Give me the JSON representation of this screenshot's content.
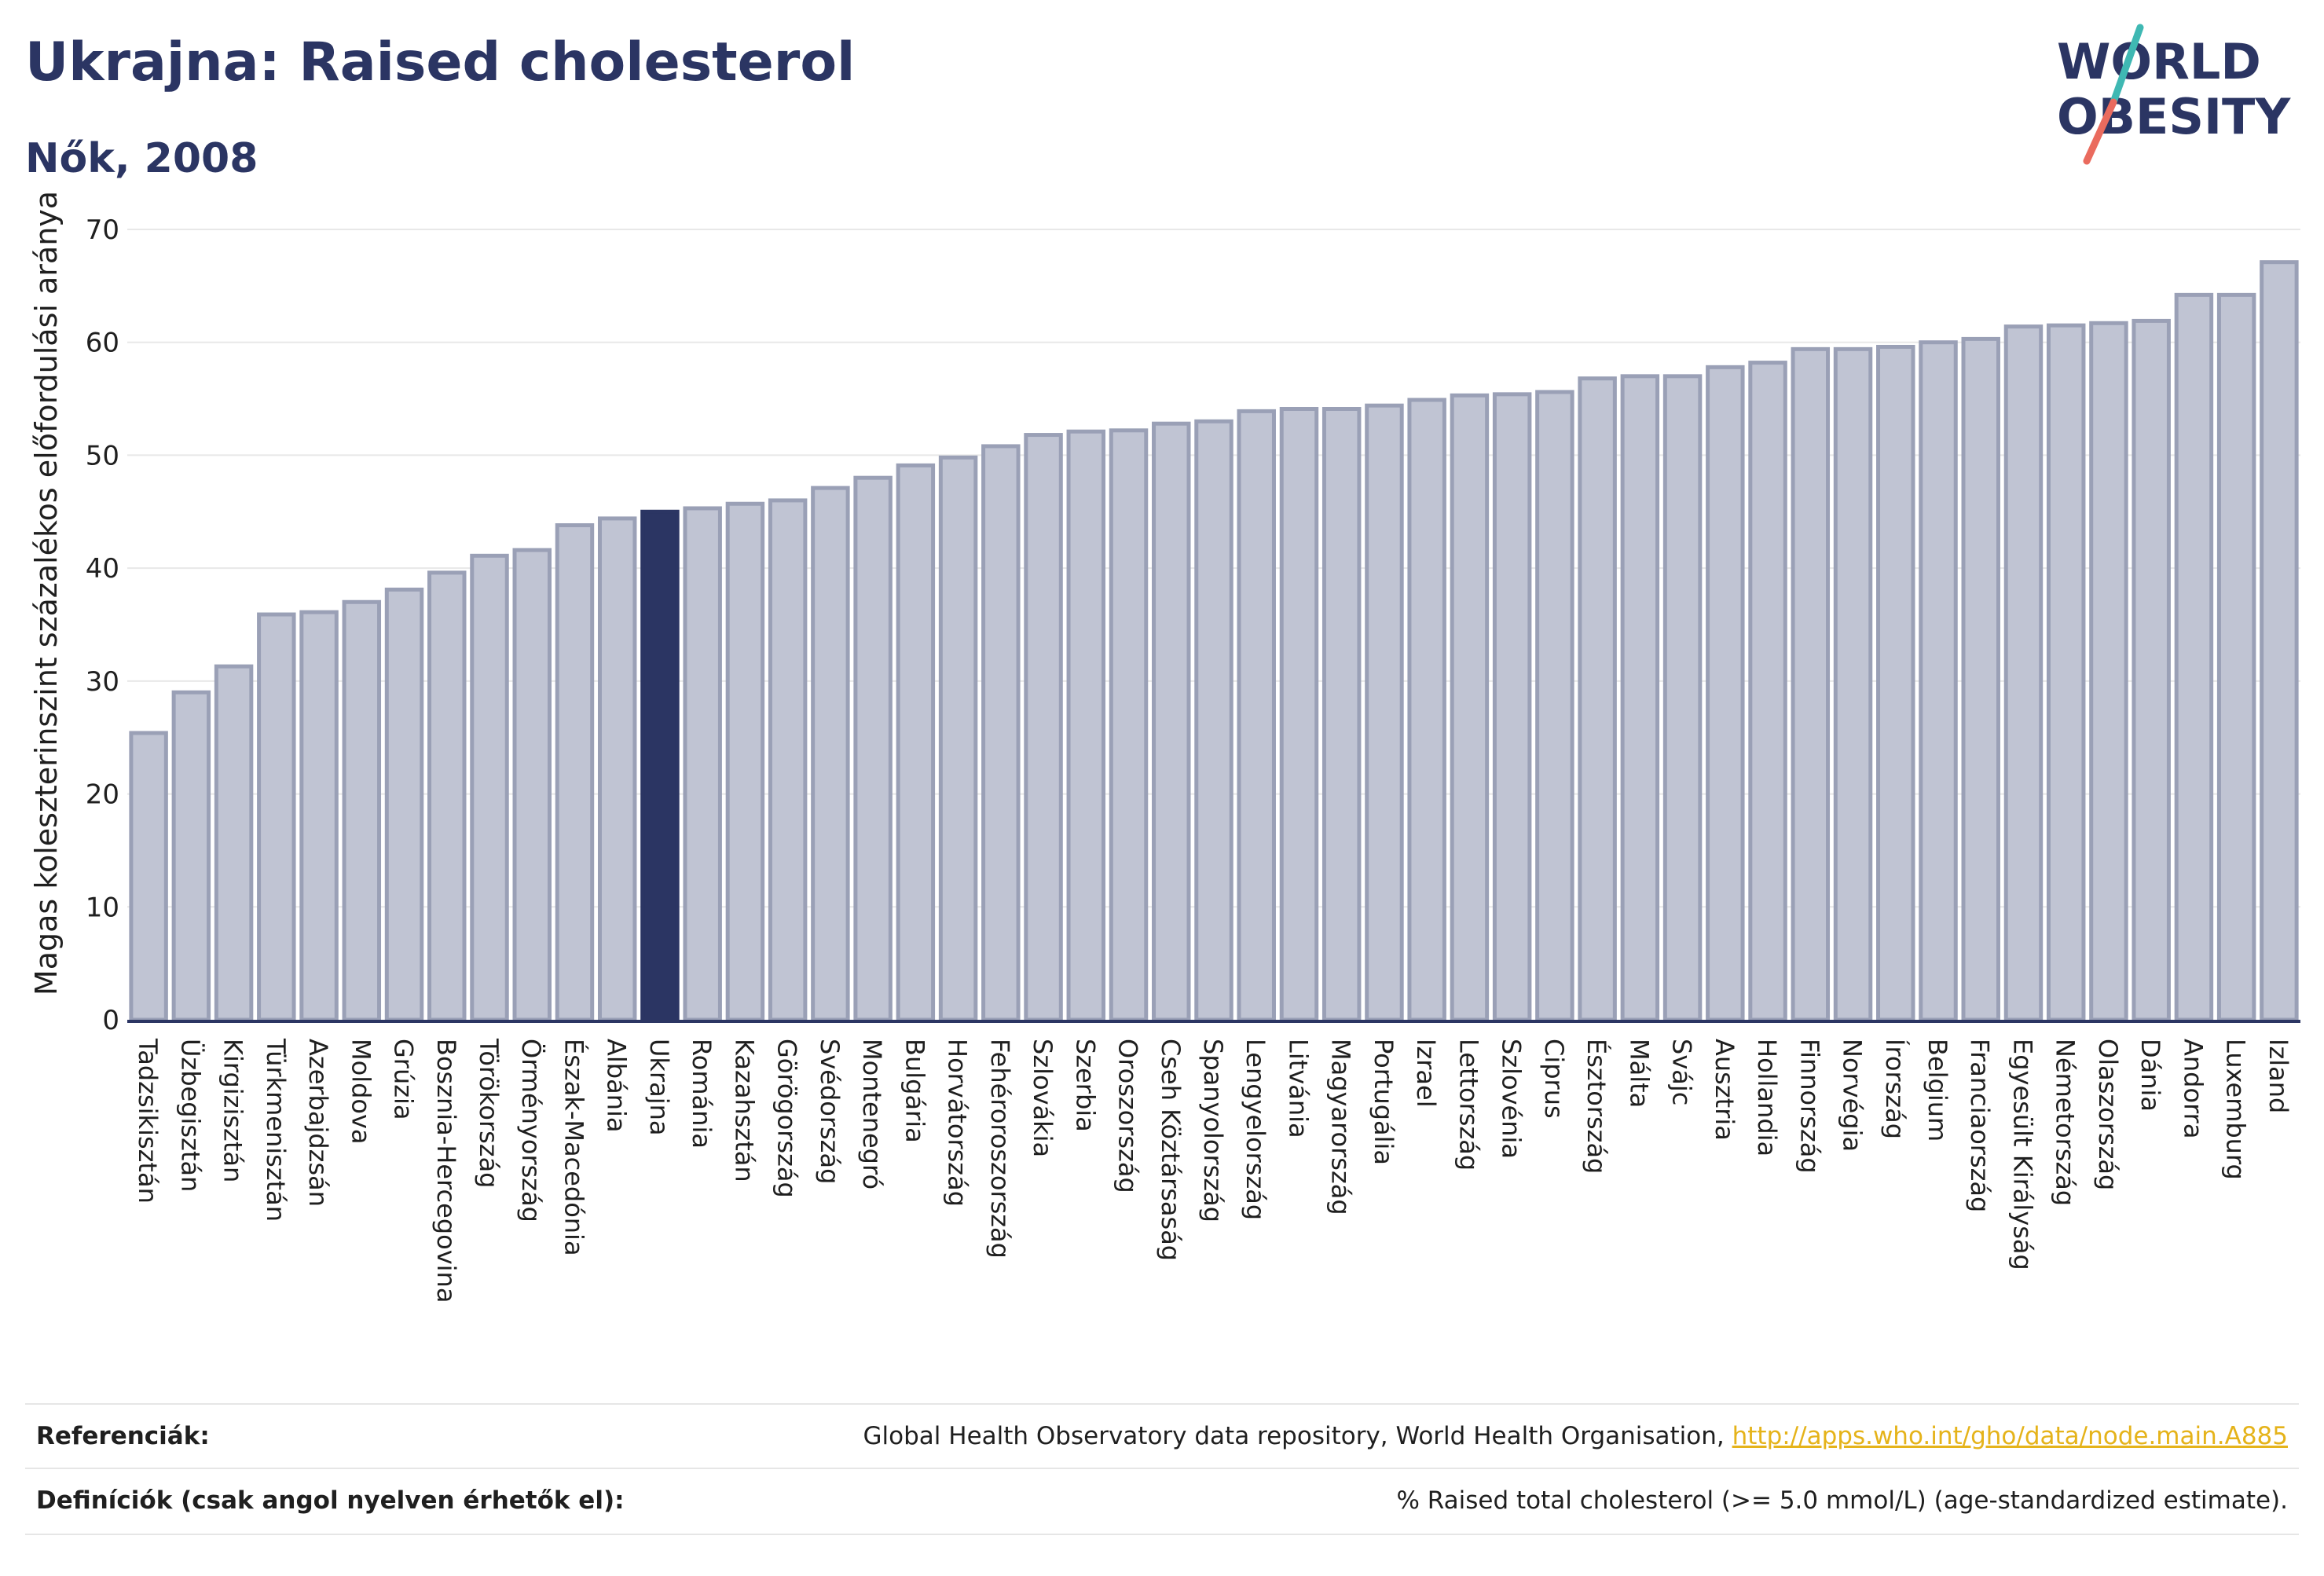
{
  "header": {
    "title": "Ukrajna: Raised cholesterol",
    "subtitle": "Nők, 2008"
  },
  "logo": {
    "line1": "WORLD",
    "line2": "OBESITY",
    "colors": {
      "text": "#2b3563",
      "slash_teal": "#3fb8b3",
      "slash_coral": "#ea6b5e"
    }
  },
  "chart_data": {
    "type": "bar",
    "ylabel": "Magas koleszterinszint százalékos előfordulási aránya",
    "xlabel": "",
    "ylim": [
      0,
      70
    ],
    "yticks": [
      0,
      10,
      20,
      30,
      40,
      50,
      60,
      70
    ],
    "grid": true,
    "legend": "none",
    "highlight": "Ukrajna",
    "colors": {
      "bar": "#c0c4d3",
      "bar_edge": "#9aa0b6",
      "highlight": "#2b3563",
      "grid": "#e8e8e8",
      "axis": "#2b3563"
    },
    "categories": [
      "Tadzsikisztán",
      "Üzbegisztán",
      "Kirgizisztán",
      "Türkmenisztán",
      "Azerbajdzsán",
      "Moldova",
      "Grúzia",
      "Bosznia-Hercegovina",
      "Törökország",
      "Örményország",
      "Észak-Macedónia",
      "Albánia",
      "Ukrajna",
      "Románia",
      "Kazahsztán",
      "Görögország",
      "Svédország",
      "Montenegró",
      "Bulgária",
      "Horvátország",
      "Fehéroroszország",
      "Szlovákia",
      "Szerbia",
      "Oroszország",
      "Cseh Köztársaság",
      "Spanyolország",
      "Lengyelország",
      "Litvánia",
      "Magyarország",
      "Portugália",
      "Izrael",
      "Lettország",
      "Szlovénia",
      "Ciprus",
      "Észtország",
      "Málta",
      "Svájc",
      "Ausztria",
      "Hollandia",
      "Finnország",
      "Norvégia",
      "Írország",
      "Belgium",
      "Franciaország",
      "Egyesült Királyság",
      "Németország",
      "Olaszország",
      "Dánia",
      "Andorra",
      "Luxemburg",
      "Izland"
    ],
    "values": [
      25.4,
      29.0,
      31.3,
      35.9,
      36.1,
      37.0,
      38.1,
      39.6,
      41.1,
      41.6,
      43.8,
      44.4,
      45.0,
      45.3,
      45.7,
      46.0,
      47.1,
      48.0,
      49.1,
      49.8,
      50.8,
      51.8,
      52.1,
      52.2,
      52.8,
      53.0,
      53.9,
      54.1,
      54.1,
      54.4,
      54.9,
      55.3,
      55.4,
      55.6,
      56.8,
      57.0,
      57.0,
      57.8,
      58.2,
      59.4,
      59.4,
      59.6,
      60.0,
      60.3,
      61.4,
      61.5,
      61.7,
      61.9,
      64.2,
      64.2,
      67.1
    ]
  },
  "footer": {
    "references_label": "Referenciák:",
    "references_text": "Global Health Observatory data repository, World Health Organisation,",
    "references_link": "http://apps.who.int/gho/data/node.main.A885",
    "definitions_label": "Definíciók (csak angol nyelven érhetők el):",
    "definitions_text": "% Raised total cholesterol (>= 5.0 mmol/L) (age-standardized estimate)."
  }
}
